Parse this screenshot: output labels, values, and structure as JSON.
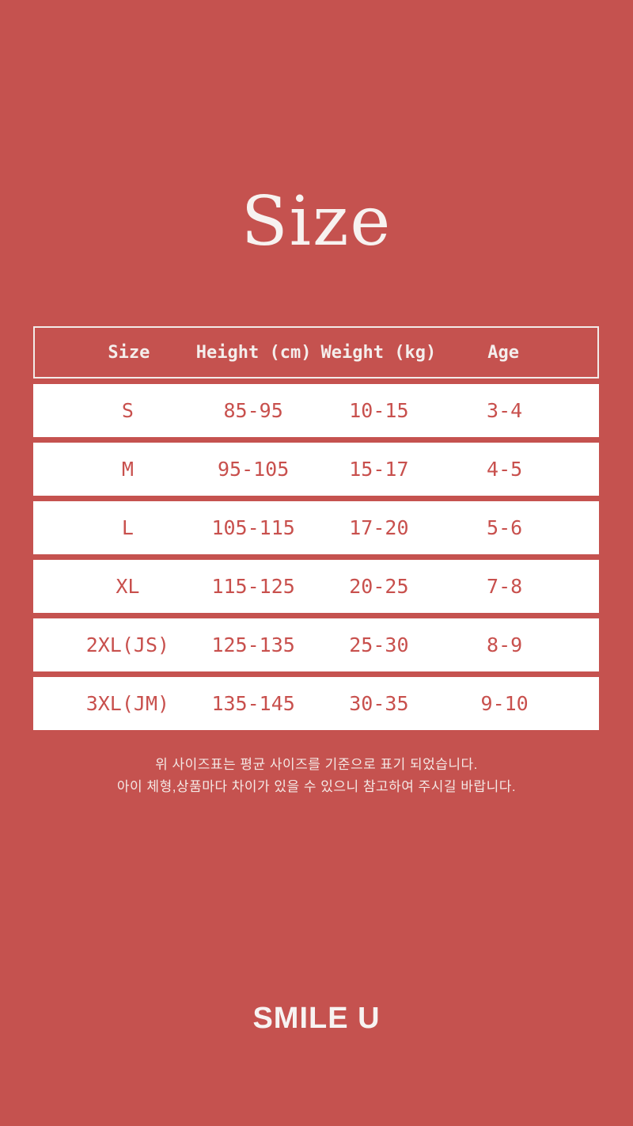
{
  "page_title": "Size",
  "chart_data": {
    "type": "table",
    "title": "Size",
    "columns": [
      "Size",
      "Height (cm)",
      "Weight (kg)",
      "Age"
    ],
    "rows": [
      [
        "S",
        "85-95",
        "10-15",
        "3-4"
      ],
      [
        "M",
        "95-105",
        "15-17",
        "4-5"
      ],
      [
        "L",
        "105-115",
        "17-20",
        "5-6"
      ],
      [
        "XL",
        "115-125",
        "20-25",
        "7-8"
      ],
      [
        "2XL(JS)",
        "125-135",
        "25-30",
        "8-9"
      ],
      [
        "3XL(JM)",
        "135-145",
        "30-35",
        "9-10"
      ]
    ]
  },
  "notes": {
    "line1": "위 사이즈표는 평균 사이즈를 기준으로 표기 되었습니다.",
    "line2": "아이 체형,상품마다 차이가 있을 수 있으니 참고하여 주시길 바랍니다."
  },
  "brand": {
    "label": "SMILE U"
  },
  "colors": {
    "background": "#c5524f",
    "table_text": "#c8504d",
    "row_background": "#ffffff",
    "light_text": "#f4eeec"
  }
}
